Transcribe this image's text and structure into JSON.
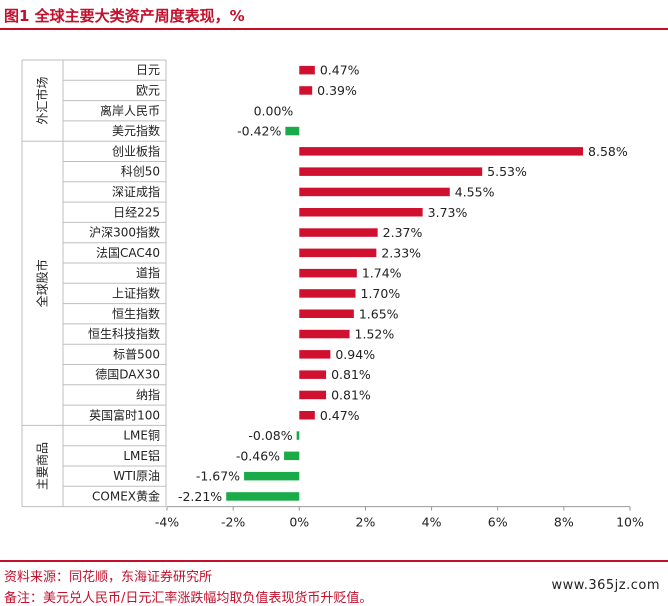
{
  "header": {
    "title": "图1  全球主要大类资产周度表现，%"
  },
  "chart_data": {
    "type": "bar",
    "orientation": "horizontal",
    "xlim": [
      -4,
      10
    ],
    "xticks": [
      -4,
      -2,
      0,
      2,
      4,
      6,
      8,
      10
    ],
    "tick_labels": [
      "-4%",
      "-2%",
      "0%",
      "2%",
      "4%",
      "6%",
      "8%",
      "10%"
    ],
    "grid": false,
    "legend": "none",
    "colors": {
      "positive": "#d0102f",
      "negative": "#1aab48"
    },
    "groups": [
      {
        "label": "外汇市场",
        "start": 0,
        "end": 3
      },
      {
        "label": "全球股市",
        "start": 4,
        "end": 17
      },
      {
        "label": "主要商品",
        "start": 18,
        "end": 21
      }
    ],
    "categories": [
      "日元",
      "欧元",
      "离岸人民币",
      "美元指数",
      "创业板指",
      "科创50",
      "深证成指",
      "日经225",
      "沪深300指数",
      "法国CAC40",
      "道指",
      "上证指数",
      "恒生指数",
      "恒生科技指数",
      "标普500",
      "德国DAX30",
      "纳指",
      "英国富时100",
      "LME铜",
      "LME铝",
      "WTI原油",
      "COMEX黄金"
    ],
    "values": [
      0.47,
      0.39,
      0.0,
      -0.42,
      8.58,
      5.53,
      4.55,
      3.73,
      2.37,
      2.33,
      1.74,
      1.7,
      1.65,
      1.52,
      0.94,
      0.81,
      0.81,
      0.47,
      -0.08,
      -0.46,
      -1.67,
      -2.21
    ],
    "value_labels": [
      "0.47%",
      "0.39%",
      "0.00%",
      "-0.42%",
      "8.58%",
      "5.53%",
      "4.55%",
      "3.73%",
      "2.37%",
      "2.33%",
      "1.74%",
      "1.70%",
      "1.65%",
      "1.52%",
      "0.94%",
      "0.81%",
      "0.81%",
      "0.47%",
      "-0.08%",
      "-0.46%",
      "-1.67%",
      "-2.21%"
    ]
  },
  "footer": {
    "source": "资料来源：同花顺，东海证券研究所",
    "note": "备注：美元兑人民币/日元汇率涨跌幅均取负值表现货币升贬值。",
    "watermark": "www.365jz.com"
  }
}
